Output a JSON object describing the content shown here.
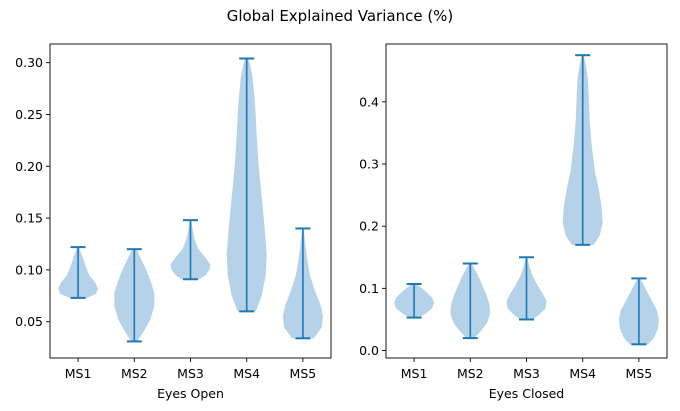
{
  "title": "Global Explained Variance (%)",
  "colors": {
    "body": "#aecde6",
    "line": "#1f77b4",
    "axis": "#000000"
  },
  "chart_data": [
    {
      "type": "violin",
      "xlabel": "Eyes Open",
      "ylabel": "",
      "ylim": [
        0.015,
        0.318
      ],
      "yticks": [
        0.05,
        0.1,
        0.15,
        0.2,
        0.25,
        0.3
      ],
      "ytick_labels": [
        "0.05",
        "0.10",
        "0.15",
        "0.20",
        "0.25",
        "0.30"
      ],
      "categories": [
        "MS1",
        "MS2",
        "MS3",
        "MS4",
        "MS5"
      ],
      "series": [
        {
          "min": 0.073,
          "max": 0.122,
          "profile": [
            [
              0.073,
              0.45
            ],
            [
              0.077,
              0.9
            ],
            [
              0.082,
              1.0
            ],
            [
              0.088,
              0.85
            ],
            [
              0.095,
              0.55
            ],
            [
              0.105,
              0.35
            ],
            [
              0.113,
              0.22
            ],
            [
              0.118,
              0.12
            ],
            [
              0.122,
              0.05
            ]
          ]
        },
        {
          "min": 0.031,
          "max": 0.12,
          "profile": [
            [
              0.031,
              0.15
            ],
            [
              0.04,
              0.45
            ],
            [
              0.052,
              0.8
            ],
            [
              0.065,
              1.0
            ],
            [
              0.078,
              1.0
            ],
            [
              0.09,
              0.8
            ],
            [
              0.102,
              0.55
            ],
            [
              0.112,
              0.3
            ],
            [
              0.12,
              0.1
            ]
          ]
        },
        {
          "min": 0.091,
          "max": 0.148,
          "profile": [
            [
              0.091,
              0.45
            ],
            [
              0.095,
              0.75
            ],
            [
              0.1,
              0.95
            ],
            [
              0.105,
              1.0
            ],
            [
              0.112,
              0.75
            ],
            [
              0.12,
              0.4
            ],
            [
              0.13,
              0.2
            ],
            [
              0.14,
              0.1
            ],
            [
              0.148,
              0.03
            ]
          ]
        },
        {
          "min": 0.06,
          "max": 0.304,
          "profile": [
            [
              0.06,
              0.45
            ],
            [
              0.075,
              0.75
            ],
            [
              0.095,
              0.95
            ],
            [
              0.115,
              1.0
            ],
            [
              0.14,
              0.9
            ],
            [
              0.17,
              0.75
            ],
            [
              0.2,
              0.6
            ],
            [
              0.23,
              0.5
            ],
            [
              0.26,
              0.42
            ],
            [
              0.285,
              0.3
            ],
            [
              0.3,
              0.15
            ],
            [
              0.304,
              0.06
            ]
          ]
        },
        {
          "min": 0.034,
          "max": 0.14,
          "profile": [
            [
              0.034,
              0.55
            ],
            [
              0.045,
              0.95
            ],
            [
              0.055,
              1.0
            ],
            [
              0.065,
              0.9
            ],
            [
              0.08,
              0.6
            ],
            [
              0.095,
              0.35
            ],
            [
              0.11,
              0.22
            ],
            [
              0.125,
              0.12
            ],
            [
              0.14,
              0.04
            ]
          ]
        }
      ]
    },
    {
      "type": "violin",
      "xlabel": "Eyes Closed",
      "ylabel": "",
      "ylim": [
        -0.012,
        0.493
      ],
      "yticks": [
        0.0,
        0.1,
        0.2,
        0.3,
        0.4
      ],
      "ytick_labels": [
        "0.0",
        "0.1",
        "0.2",
        "0.3",
        "0.4"
      ],
      "categories": [
        "MS1",
        "MS2",
        "MS3",
        "MS4",
        "MS5"
      ],
      "series": [
        {
          "min": 0.053,
          "max": 0.107,
          "profile": [
            [
              0.053,
              0.25
            ],
            [
              0.06,
              0.6
            ],
            [
              0.068,
              0.9
            ],
            [
              0.077,
              1.0
            ],
            [
              0.085,
              0.9
            ],
            [
              0.093,
              0.65
            ],
            [
              0.1,
              0.4
            ],
            [
              0.107,
              0.1
            ]
          ]
        },
        {
          "min": 0.02,
          "max": 0.14,
          "profile": [
            [
              0.02,
              0.2
            ],
            [
              0.03,
              0.5
            ],
            [
              0.045,
              0.85
            ],
            [
              0.06,
              1.0
            ],
            [
              0.075,
              0.95
            ],
            [
              0.09,
              0.8
            ],
            [
              0.105,
              0.6
            ],
            [
              0.12,
              0.4
            ],
            [
              0.132,
              0.2
            ],
            [
              0.14,
              0.05
            ]
          ]
        },
        {
          "min": 0.05,
          "max": 0.15,
          "profile": [
            [
              0.05,
              0.3
            ],
            [
              0.058,
              0.65
            ],
            [
              0.068,
              0.95
            ],
            [
              0.08,
              1.0
            ],
            [
              0.092,
              0.8
            ],
            [
              0.105,
              0.55
            ],
            [
              0.12,
              0.3
            ],
            [
              0.135,
              0.15
            ],
            [
              0.15,
              0.03
            ]
          ]
        },
        {
          "min": 0.17,
          "max": 0.475,
          "profile": [
            [
              0.17,
              0.55
            ],
            [
              0.185,
              0.85
            ],
            [
              0.205,
              1.0
            ],
            [
              0.23,
              0.95
            ],
            [
              0.26,
              0.8
            ],
            [
              0.29,
              0.6
            ],
            [
              0.33,
              0.45
            ],
            [
              0.37,
              0.35
            ],
            [
              0.41,
              0.3
            ],
            [
              0.44,
              0.25
            ],
            [
              0.46,
              0.15
            ],
            [
              0.475,
              0.05
            ]
          ]
        },
        {
          "min": 0.01,
          "max": 0.116,
          "profile": [
            [
              0.01,
              0.45
            ],
            [
              0.02,
              0.75
            ],
            [
              0.035,
              0.95
            ],
            [
              0.05,
              1.0
            ],
            [
              0.065,
              0.9
            ],
            [
              0.08,
              0.65
            ],
            [
              0.095,
              0.4
            ],
            [
              0.108,
              0.2
            ],
            [
              0.116,
              0.05
            ]
          ]
        }
      ]
    }
  ]
}
